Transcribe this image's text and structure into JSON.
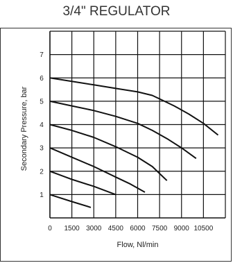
{
  "chart_data": {
    "type": "line",
    "title": "3/4\" REGULATOR",
    "xlabel": "Flow, Nl/min",
    "ylabel": "Secondary Pressure, bar",
    "xlim": [
      0,
      12000
    ],
    "ylim": [
      0,
      8
    ],
    "xticks": [
      0,
      1500,
      3000,
      4500,
      6000,
      7500,
      9000,
      10500
    ],
    "yticks": [
      1,
      2,
      3,
      4,
      5,
      6,
      7
    ],
    "grid": true,
    "series": [
      {
        "x": [
          0,
          1500,
          3000,
          4500,
          6000,
          7000,
          7500,
          8500,
          9500,
          10500,
          11500
        ],
        "y": [
          6.0,
          5.85,
          5.7,
          5.55,
          5.4,
          5.25,
          5.1,
          4.8,
          4.45,
          4.05,
          3.55
        ]
      },
      {
        "x": [
          0,
          1500,
          3000,
          4500,
          6000,
          7000,
          8000,
          9000,
          10000
        ],
        "y": [
          5.0,
          4.8,
          4.6,
          4.35,
          4.05,
          3.75,
          3.4,
          3.0,
          2.55
        ]
      },
      {
        "x": [
          0,
          1500,
          3000,
          4500,
          6000,
          7000,
          8000
        ],
        "y": [
          4.0,
          3.75,
          3.45,
          3.05,
          2.6,
          2.2,
          1.6
        ]
      },
      {
        "x": [
          0,
          1500,
          3000,
          4500,
          5500,
          6500
        ],
        "y": [
          3.0,
          2.6,
          2.2,
          1.75,
          1.45,
          1.1
        ]
      },
      {
        "x": [
          0,
          1500,
          3000,
          4500
        ],
        "y": [
          2.0,
          1.65,
          1.35,
          1.0
        ]
      },
      {
        "x": [
          0,
          1500,
          2800
        ],
        "y": [
          1.0,
          0.7,
          0.45
        ]
      }
    ]
  }
}
